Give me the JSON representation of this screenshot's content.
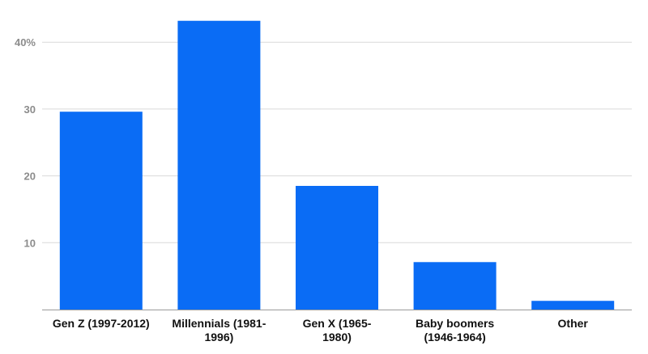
{
  "chart_data": {
    "type": "bar",
    "title": "",
    "xlabel": "",
    "ylabel": "",
    "categories": [
      [
        "Gen Z (1997-2012)"
      ],
      [
        "Millennials (1981-",
        "1996)"
      ],
      [
        "Gen X (1965-",
        "1980)"
      ],
      [
        "Baby boomers",
        "(1946-1964)"
      ],
      [
        "Other"
      ]
    ],
    "values": [
      29.6,
      43.2,
      18.5,
      7.1,
      1.3
    ],
    "ylim": [
      0,
      43.5
    ],
    "yticks": [
      10,
      20,
      30,
      40
    ],
    "ytick_labels": [
      "10",
      "20",
      "30",
      "40%"
    ],
    "grid": true,
    "legend": "none",
    "bar_color": "#0a6cf5"
  }
}
